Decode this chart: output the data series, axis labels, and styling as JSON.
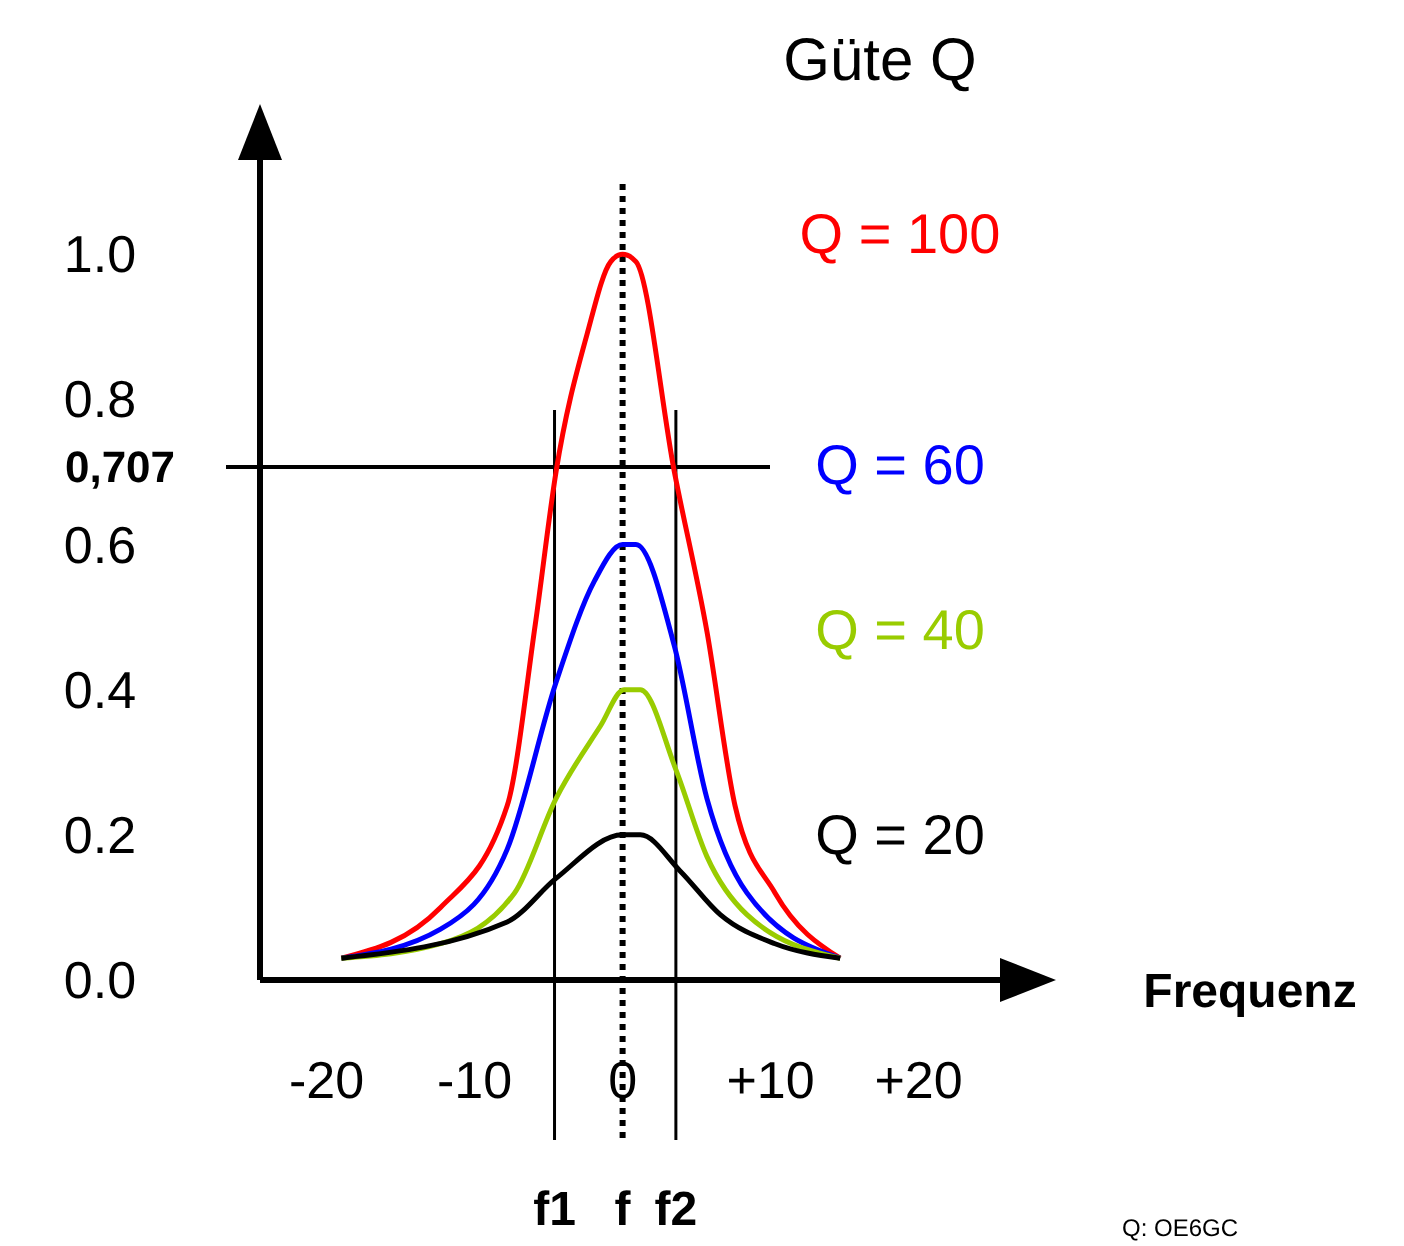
{
  "chart_data": {
    "type": "line",
    "title": "Güte Q",
    "xlabel": "Frequenz",
    "xlim": [
      -24.5,
      25.5
    ],
    "xticks": [
      -20,
      -10,
      0,
      {
        "value": 10,
        "label": "+10"
      },
      {
        "value": 20,
        "label": "+20"
      }
    ],
    "ylim": [
      0,
      1.13
    ],
    "yticks": [
      {
        "value": 0,
        "label": "0.0"
      },
      {
        "value": 0.2,
        "label": "0.2"
      },
      {
        "value": 0.4,
        "label": "0.4"
      },
      {
        "value": 0.6,
        "label": "0.6"
      },
      {
        "value": 0.8,
        "label": "0.8"
      },
      {
        "value": 1.0,
        "label": "1.0"
      }
    ],
    "grid": false,
    "marker": "none",
    "line_style": "solid",
    "series": [
      {
        "name": "Q = 100",
        "color": "#ff0000",
        "x": [
          -19,
          -12.3,
          -7.8,
          -5.9,
          -4.5,
          -2.4,
          -0.8,
          0,
          0.9,
          3.5,
          5.7,
          7.6,
          10.3,
          14.7
        ],
        "values": [
          0.03,
          0.1,
          0.24,
          0.49,
          0.7,
          0.89,
          0.99,
          1.0,
          0.99,
          0.7,
          0.48,
          0.24,
          0.12,
          0.03
        ]
      },
      {
        "name": "Q = 60",
        "color": "#0000ff",
        "x": [
          -19,
          -12.3,
          -7.8,
          -4.5,
          -1.9,
          0,
          0.9,
          3.5,
          5.7,
          8.4,
          14.7
        ],
        "values": [
          0.03,
          0.07,
          0.18,
          0.41,
          0.55,
          0.6,
          0.6,
          0.46,
          0.25,
          0.12,
          0.03
        ]
      },
      {
        "name": "Q = 40",
        "color": "#99cc00",
        "x": [
          -19,
          -12.3,
          -7.3,
          -4.5,
          -1.5,
          0.1,
          1.2,
          3.6,
          5.7,
          8.4,
          14.7
        ],
        "values": [
          0.03,
          0.05,
          0.12,
          0.25,
          0.35,
          0.4,
          0.4,
          0.29,
          0.17,
          0.09,
          0.03
        ]
      },
      {
        "name": "Q = 20",
        "color": "#000000",
        "x": [
          -19,
          -7.8,
          -4.5,
          0,
          1.2,
          3.9,
          6.6,
          10.3,
          14.7
        ],
        "values": [
          0.03,
          0.08,
          0.14,
          0.2,
          0.2,
          0.15,
          0.09,
          0.05,
          0.03
        ]
      }
    ],
    "ref_lines": [
      {
        "axis": "y",
        "value": 0.707,
        "label": "0,707",
        "color": "#000000"
      },
      {
        "axis": "x",
        "value": -4.6,
        "label": "f1",
        "color": "#000000"
      },
      {
        "axis": "x",
        "value": 0,
        "label": "f",
        "color": "#000000",
        "line_style": "dotted"
      },
      {
        "axis": "x",
        "value": 3.6,
        "label": "f2",
        "color": "#000000"
      }
    ],
    "annotations": [
      "Q: OE6GC"
    ]
  }
}
